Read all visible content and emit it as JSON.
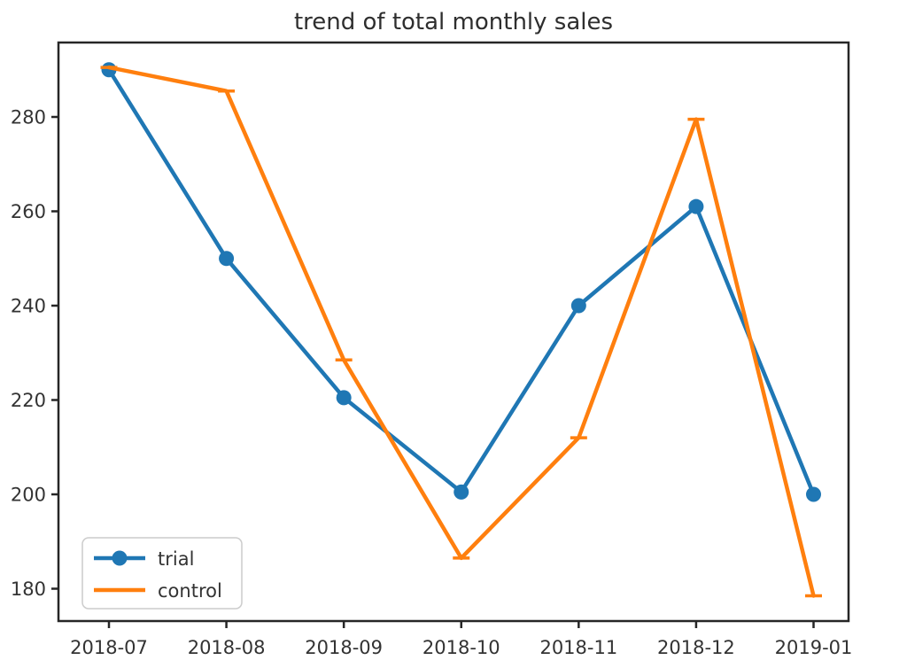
{
  "title": "trend of total monthly sales",
  "chart_data": {
    "type": "line",
    "title": "trend of total monthly sales",
    "categories": [
      "2018-07",
      "2018-08",
      "2018-09",
      "2018-10",
      "2018-11",
      "2018-12",
      "2019-01"
    ],
    "series": [
      {
        "name": "trial",
        "color": "#1f77b4",
        "marker": "circle",
        "values": [
          290,
          250,
          220.5,
          200.5,
          240,
          261,
          200
        ]
      },
      {
        "name": "control",
        "color": "#ff7f0e",
        "marker": "hline",
        "values": [
          290.5,
          285.5,
          228.5,
          186.5,
          212,
          279.5,
          178.5
        ]
      }
    ],
    "xlabel": "",
    "ylabel": "",
    "yticks": [
      180,
      200,
      220,
      240,
      260,
      280
    ],
    "ylim": [
      173,
      296
    ],
    "grid": false,
    "legend_position": "lower left"
  },
  "colors": {
    "axis": "#262626",
    "tick_text": "#333333",
    "title_text": "#2e2e2e",
    "background": "#ffffff",
    "legend_border": "#cccccc"
  }
}
